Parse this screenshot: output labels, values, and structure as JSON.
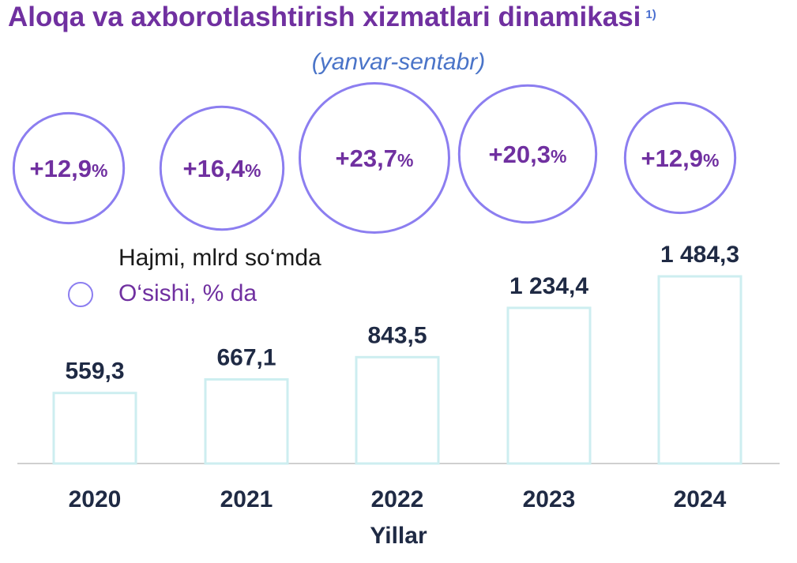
{
  "header": {
    "title": "Aloqa va axborotlashtirish xizmatlari dinamikasi",
    "footnote": "1)",
    "subtitle": "(yanvar-sentabr)"
  },
  "legend": {
    "volume_label": "Hajmi, mlrd so‘mda",
    "growth_label": "O‘sishi, % da"
  },
  "colors": {
    "title": "#7030A0",
    "subtitle": "#4A74C8",
    "bar_border": "#CDEEF0",
    "circle_border": "#8C7EF0",
    "value_text": "#1F2A44",
    "growth_text": "#7030A0"
  },
  "chart_data": {
    "type": "bar",
    "title": "Aloqa va axborotlashtirish xizmatlari dinamikasi",
    "subtitle": "(yanvar-sentabr)",
    "xlabel": "Yillar",
    "ylabel": "",
    "categories": [
      "2020",
      "2021",
      "2022",
      "2023",
      "2024"
    ],
    "ylim": [
      0,
      1600
    ],
    "series": [
      {
        "name": "Hajmi, mlrd so‘mda",
        "values": [
          559.3,
          667.1,
          843.5,
          1234.4,
          1484.3
        ],
        "labels": [
          "559,3",
          "667,1",
          "843,5",
          "1 234,4",
          "1 484,3"
        ]
      },
      {
        "name": "O‘sishi, % da",
        "values": [
          12.9,
          16.4,
          23.7,
          20.3,
          12.9
        ],
        "labels": [
          "+12,9",
          "+16,4",
          "+23,7",
          "+20,3",
          "+12,9"
        ],
        "unit": "%"
      }
    ],
    "grid": false,
    "legend_position": "left"
  }
}
